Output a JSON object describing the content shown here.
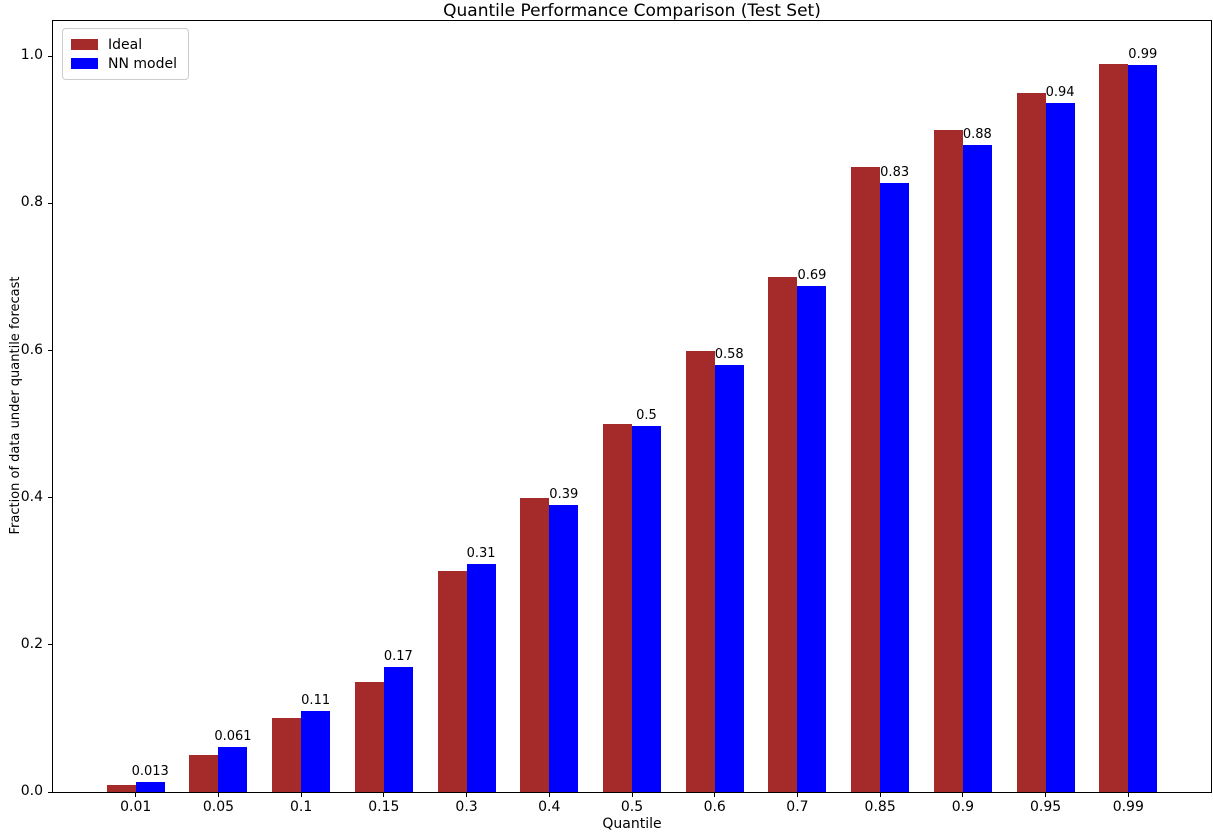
{
  "chart_data": {
    "type": "bar",
    "title": "Quantile Performance Comparison (Test Set)",
    "xlabel": "Quantile",
    "ylabel": "Fraction of data under quantile forecast",
    "categories": [
      "0.01",
      "0.05",
      "0.1",
      "0.15",
      "0.3",
      "0.4",
      "0.5",
      "0.6",
      "0.7",
      "0.85",
      "0.9",
      "0.95",
      "0.99"
    ],
    "series": [
      {
        "name": "Ideal",
        "color": "#a52a2a",
        "values": [
          0.01,
          0.05,
          0.1,
          0.15,
          0.3,
          0.4,
          0.5,
          0.6,
          0.7,
          0.85,
          0.9,
          0.95,
          0.99
        ]
      },
      {
        "name": "NN model",
        "color": "#0000ff",
        "values": [
          0.013,
          0.061,
          0.11,
          0.17,
          0.31,
          0.39,
          0.497,
          0.58,
          0.688,
          0.828,
          0.88,
          0.937,
          0.988
        ],
        "bar_labels": [
          "0.013",
          "0.061",
          "0.11",
          "0.17",
          "0.31",
          "0.39",
          "0.5",
          "0.58",
          "0.69",
          "0.83",
          "0.88",
          "0.94",
          "0.99"
        ]
      }
    ],
    "ylim": [
      0,
      1.048
    ],
    "yticks": [
      {
        "label": "0.0",
        "value": 0.0
      },
      {
        "label": "0.2",
        "value": 0.2
      },
      {
        "label": "0.4",
        "value": 0.4
      },
      {
        "label": "0.6",
        "value": 0.6
      },
      {
        "label": "0.8",
        "value": 0.8
      },
      {
        "label": "1.0",
        "value": 1.0
      }
    ],
    "grid": false,
    "legend_position": "upper left"
  }
}
